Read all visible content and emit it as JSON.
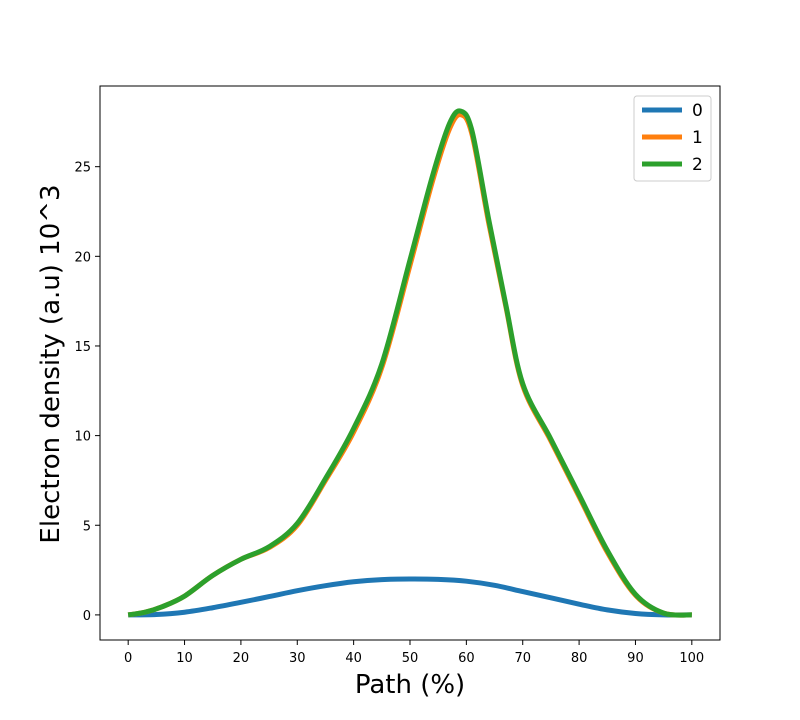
{
  "chart_data": {
    "type": "line",
    "title": "",
    "xlabel": "Path (%)",
    "ylabel": "Electron density (a.u) 10^3",
    "xlim": [
      -5,
      105
    ],
    "ylim": [
      -1.4,
      29.5
    ],
    "xticks": [
      0,
      10,
      20,
      30,
      40,
      50,
      60,
      70,
      80,
      90,
      100
    ],
    "yticks": [
      0,
      5,
      10,
      15,
      20,
      25
    ],
    "grid": false,
    "legend_position": "top-right",
    "series": [
      {
        "name": "0",
        "color": "#1f77b4",
        "x": [
          0,
          5,
          10,
          15,
          20,
          25,
          30,
          35,
          40,
          45,
          50,
          55,
          60,
          65,
          70,
          75,
          80,
          85,
          90,
          95,
          100
        ],
        "y": [
          0.0,
          0.02,
          0.15,
          0.4,
          0.7,
          1.02,
          1.35,
          1.63,
          1.85,
          1.97,
          2.0,
          1.98,
          1.88,
          1.65,
          1.3,
          0.95,
          0.6,
          0.28,
          0.08,
          0.0,
          0.0
        ]
      },
      {
        "name": "1",
        "color": "#ff7f0e",
        "x": [
          0,
          3,
          6,
          10,
          15,
          20,
          25,
          30,
          35,
          40,
          45,
          50,
          54,
          57,
          59,
          61,
          64,
          67,
          70,
          75,
          80,
          85,
          90,
          95,
          100
        ],
        "y": [
          0.0,
          0.15,
          0.45,
          1.05,
          2.2,
          3.1,
          3.75,
          5.0,
          7.5,
          10.2,
          13.8,
          19.5,
          24.2,
          27.1,
          27.9,
          26.8,
          21.8,
          17.2,
          12.8,
          9.7,
          6.6,
          3.5,
          1.1,
          0.1,
          0.0
        ]
      },
      {
        "name": "2",
        "color": "#2ca02c",
        "x": [
          0,
          3,
          6,
          10,
          15,
          20,
          25,
          30,
          35,
          40,
          45,
          50,
          54,
          57,
          59,
          61,
          64,
          67,
          70,
          75,
          80,
          85,
          90,
          95,
          100
        ],
        "y": [
          0.0,
          0.15,
          0.45,
          1.05,
          2.2,
          3.1,
          3.8,
          5.1,
          7.6,
          10.4,
          14.0,
          19.8,
          24.5,
          27.4,
          28.1,
          27.0,
          22.0,
          17.3,
          12.9,
          9.8,
          6.7,
          3.6,
          1.15,
          0.1,
          0.0
        ]
      }
    ]
  }
}
